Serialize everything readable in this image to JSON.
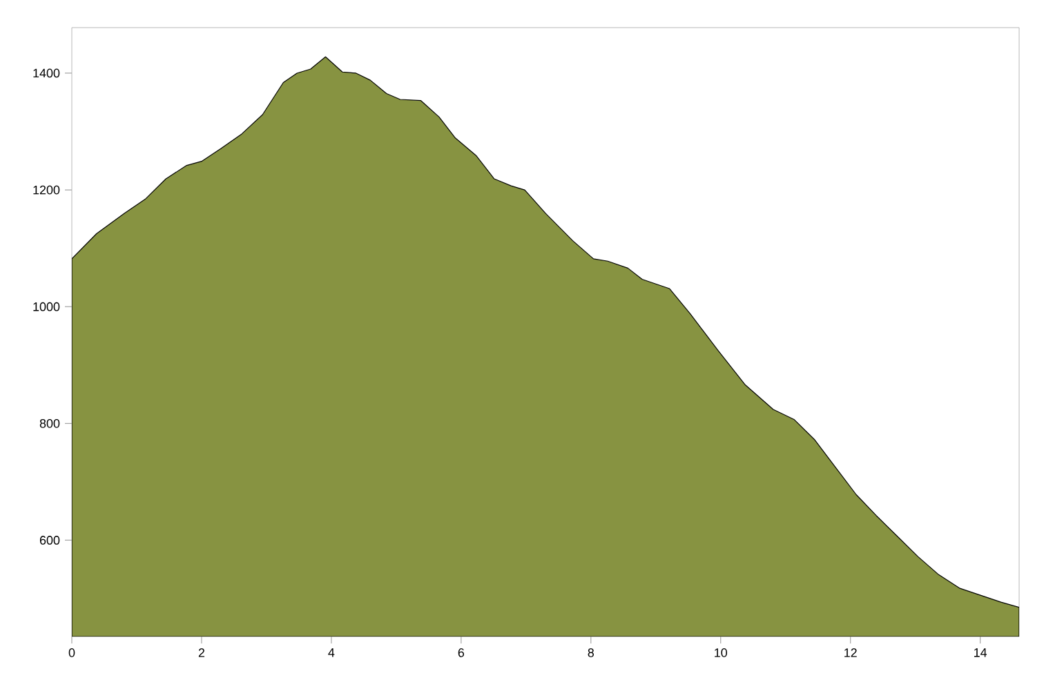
{
  "chart_data": {
    "type": "area",
    "color": "#879341",
    "x": [
      0,
      0.38,
      0.81,
      1.13,
      1.45,
      1.77,
      2.0,
      2.3,
      2.62,
      2.94,
      3.26,
      3.47,
      3.68,
      3.91,
      4.17,
      4.38,
      4.6,
      4.85,
      5.06,
      5.38,
      5.66,
      5.91,
      6.23,
      6.51,
      6.77,
      6.98,
      7.3,
      7.72,
      8.04,
      8.26,
      8.57,
      8.79,
      9.21,
      9.53,
      9.96,
      10.38,
      10.81,
      11.13,
      11.45,
      11.77,
      12.09,
      12.4,
      12.72,
      13.04,
      13.36,
      13.68,
      14.0,
      14.32,
      14.6
    ],
    "values": [
      1082,
      1125,
      1160,
      1184,
      1219,
      1242,
      1249,
      1271,
      1296,
      1329,
      1384,
      1400,
      1407,
      1428,
      1402,
      1400,
      1388,
      1365,
      1355,
      1353,
      1325,
      1289,
      1259,
      1219,
      1207,
      1200,
      1160,
      1113,
      1082,
      1078,
      1066,
      1047,
      1031,
      988,
      925,
      866,
      824,
      807,
      772,
      725,
      678,
      642,
      607,
      572,
      541,
      518,
      506,
      494,
      485
    ],
    "xlim": [
      0,
      14.6
    ],
    "ylim": [
      435,
      1478
    ],
    "xticks": [
      0,
      2,
      4,
      6,
      8,
      10,
      12,
      14
    ],
    "yticks": [
      600,
      800,
      1000,
      1200,
      1400
    ]
  }
}
